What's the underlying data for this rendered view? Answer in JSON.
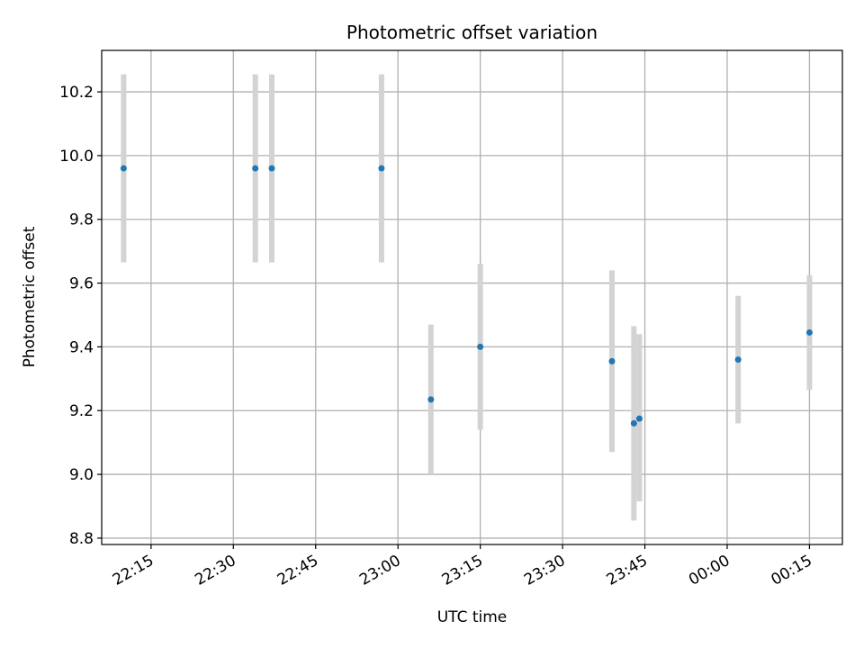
{
  "chart_data": {
    "type": "scatter",
    "title": "Photometric offset variation",
    "xlabel": "UTC time",
    "ylabel": "Photometric offset",
    "x_ticks": [
      "22:15",
      "22:30",
      "22:45",
      "23:00",
      "23:15",
      "23:30",
      "23:45",
      "00:00",
      "00:15"
    ],
    "y_ticks": [
      "8.8",
      "9.0",
      "9.2",
      "9.4",
      "9.6",
      "9.8",
      "10.0",
      "10.2"
    ],
    "xlim": [
      "22:06",
      "00:21"
    ],
    "ylim": [
      8.78,
      10.33
    ],
    "grid": true,
    "colors": {
      "point": "#1f77b4",
      "errorbar": "#d3d3d3",
      "grid": "#b0b0b0"
    },
    "points": [
      {
        "x": "22:10",
        "y": 9.96,
        "yerr_low": 9.665,
        "yerr_high": 10.255
      },
      {
        "x": "22:34",
        "y": 9.96,
        "yerr_low": 9.665,
        "yerr_high": 10.255
      },
      {
        "x": "22:37",
        "y": 9.96,
        "yerr_low": 9.665,
        "yerr_high": 10.255
      },
      {
        "x": "22:57",
        "y": 9.96,
        "yerr_low": 9.665,
        "yerr_high": 10.255
      },
      {
        "x": "23:06",
        "y": 9.235,
        "yerr_low": 9.0,
        "yerr_high": 9.47
      },
      {
        "x": "23:15",
        "y": 9.4,
        "yerr_low": 9.14,
        "yerr_high": 9.66
      },
      {
        "x": "23:39",
        "y": 9.355,
        "yerr_low": 9.07,
        "yerr_high": 9.64
      },
      {
        "x": "23:43",
        "y": 9.16,
        "yerr_low": 8.855,
        "yerr_high": 9.465
      },
      {
        "x": "23:44",
        "y": 9.175,
        "yerr_low": 8.915,
        "yerr_high": 9.44
      },
      {
        "x": "00:02",
        "y": 9.36,
        "yerr_low": 9.16,
        "yerr_high": 9.56
      },
      {
        "x": "00:15",
        "y": 9.445,
        "yerr_low": 9.265,
        "yerr_high": 9.625
      }
    ]
  }
}
